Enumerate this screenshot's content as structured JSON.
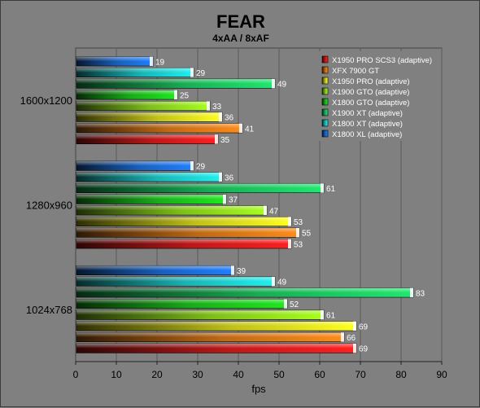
{
  "chart_data": {
    "type": "bar",
    "orientation": "horizontal",
    "title": "FEAR",
    "subtitle": "4xAA / 8xAF",
    "xlabel": "fps",
    "ylabel": "",
    "xlim": [
      0,
      90
    ],
    "xticks": [
      0,
      10,
      20,
      30,
      40,
      50,
      60,
      70,
      80,
      90
    ],
    "grid": true,
    "legend_position": "top-right",
    "categories": [
      "1600x1200",
      "1280x960",
      "1024x768"
    ],
    "series": [
      {
        "name": "X1950 PRO SCS3 (adaptive)",
        "color": "#ff2020",
        "values": [
          35,
          53,
          69
        ]
      },
      {
        "name": "XFX 7900 GT",
        "color": "#ff8c1a",
        "values": [
          41,
          55,
          66
        ]
      },
      {
        "name": "X1950 PRO (adaptive)",
        "color": "#ffff20",
        "values": [
          36,
          53,
          69
        ]
      },
      {
        "name": "X1900 GTO (adaptive)",
        "color": "#a8ff20",
        "values": [
          33,
          47,
          61
        ]
      },
      {
        "name": "X1800 GTO (adaptive)",
        "color": "#20e820",
        "values": [
          25,
          37,
          52
        ]
      },
      {
        "name": "X1900 XT (adaptive)",
        "color": "#20e870",
        "values": [
          49,
          61,
          83
        ]
      },
      {
        "name": "X1800 XT (adaptive)",
        "color": "#20f0f0",
        "values": [
          29,
          36,
          49
        ]
      },
      {
        "name": "X1800 XL (adaptive)",
        "color": "#2080ff",
        "values": [
          19,
          29,
          39
        ]
      }
    ]
  }
}
